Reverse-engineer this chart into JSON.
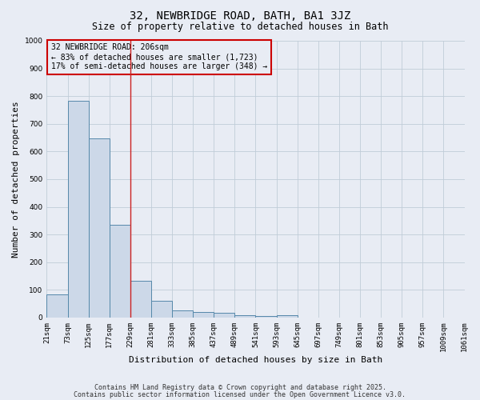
{
  "title": "32, NEWBRIDGE ROAD, BATH, BA1 3JZ",
  "subtitle": "Size of property relative to detached houses in Bath",
  "xlabel": "Distribution of detached houses by size in Bath",
  "ylabel": "Number of detached properties",
  "bar_values": [
    83,
    783,
    648,
    335,
    133,
    62,
    27,
    20,
    17,
    8,
    5,
    8,
    0,
    0,
    0,
    0,
    0,
    0,
    0,
    0
  ],
  "tick_labels": [
    "21sqm",
    "73sqm",
    "125sqm",
    "177sqm",
    "229sqm",
    "281sqm",
    "333sqm",
    "385sqm",
    "437sqm",
    "489sqm",
    "541sqm",
    "593sqm",
    "645sqm",
    "697sqm",
    "749sqm",
    "801sqm",
    "853sqm",
    "905sqm",
    "957sqm",
    "1009sqm",
    "1061sqm"
  ],
  "bar_color": "#ccd8e8",
  "bar_edge_color": "#5588aa",
  "grid_color": "#c0ccd8",
  "bg_color": "#e8ecf4",
  "property_line_color": "#cc2222",
  "annotation_box_color": "#cc0000",
  "annotation_text": "32 NEWBRIDGE ROAD: 206sqm\n← 83% of detached houses are smaller (1,723)\n17% of semi-detached houses are larger (348) →",
  "ylim": [
    0,
    1000
  ],
  "yticks": [
    0,
    100,
    200,
    300,
    400,
    500,
    600,
    700,
    800,
    900,
    1000
  ],
  "footer_line1": "Contains HM Land Registry data © Crown copyright and database right 2025.",
  "footer_line2": "Contains public sector information licensed under the Open Government Licence v3.0.",
  "title_fontsize": 10,
  "subtitle_fontsize": 8.5,
  "axis_label_fontsize": 8,
  "tick_fontsize": 6.5,
  "annotation_fontsize": 7,
  "footer_fontsize": 6
}
